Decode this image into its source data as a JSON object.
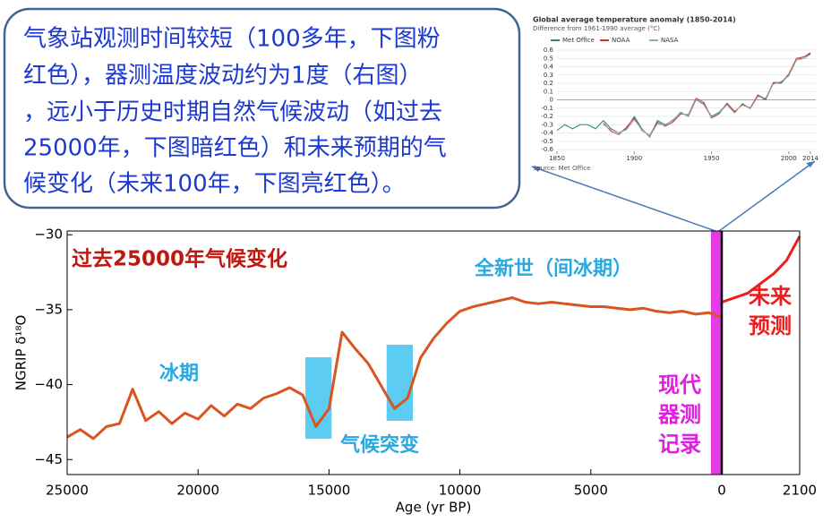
{
  "callout": {
    "lines": [
      "气象站观测时间较短（100多年，下图粉",
      "红色），器测温度波动约为1度（右图）",
      "，远小于历史时期自然气候波动（如过去",
      "25000年，下图暗红色）和未来预期的气",
      "候变化（未来100年，下图亮红色）。"
    ]
  },
  "chart_data": [
    {
      "type": "line",
      "x_label": "Age (yr BP)",
      "y_label": "NGRIP δ¹⁸O",
      "x": [
        25000,
        24500,
        24000,
        23500,
        23000,
        22500,
        22000,
        21500,
        21000,
        20500,
        20000,
        19500,
        19000,
        18500,
        18000,
        17500,
        17000,
        16500,
        16000,
        15500,
        15000,
        14500,
        14000,
        13500,
        13000,
        12500,
        12000,
        11500,
        11000,
        10500,
        10000,
        9500,
        9000,
        8500,
        8000,
        7500,
        7000,
        6500,
        6000,
        5500,
        5000,
        4500,
        4000,
        3500,
        3000,
        2500,
        2000,
        1500,
        1000,
        500,
        0
      ],
      "series": [
        {
          "color": "#d9541e",
          "values": [
            -43.5,
            -43,
            -43.6,
            -42.8,
            -42.6,
            -40.3,
            -42.4,
            -41.8,
            -42.6,
            -41.9,
            -42.3,
            -41.4,
            -42.1,
            -41.3,
            -41.6,
            -40.9,
            -40.6,
            -40.2,
            -40.7,
            -42.8,
            -41.6,
            -36.5,
            -37.6,
            -38.6,
            -40.1,
            -41.6,
            -40.9,
            -38.2,
            -36.9,
            -35.9,
            -35.1,
            -34.8,
            -34.6,
            -34.4,
            -34.2,
            -34.5,
            -34.6,
            -34.5,
            -34.6,
            -34.7,
            -34.8,
            -34.8,
            -34.9,
            -35,
            -34.9,
            -35.1,
            -35.2,
            -35.1,
            -35.3,
            -35.2,
            -35.5
          ]
        }
      ],
      "xlim": [
        25000,
        0
      ],
      "xticks": [
        25000,
        20000,
        15000,
        10000,
        5000,
        0
      ],
      "ylim": [
        -46,
        -29.75
      ],
      "yticks": [
        {
          "value": -30,
          "label": "−30"
        },
        {
          "value": -35,
          "label": "−35"
        },
        {
          "value": -40,
          "label": "−40"
        },
        {
          "value": -45,
          "label": "−45"
        }
      ],
      "highlights": [
        [
          15900,
          14900
        ],
        [
          12800,
          11800
        ]
      ],
      "highlight_color": "#3fc3f0",
      "annotations": [
        "过去25000年气候变化",
        "全新世（间冰期）",
        "冰期",
        "气候突变",
        "现代",
        "器测",
        "记录"
      ]
    },
    {
      "type": "line",
      "x": [
        1950,
        2000,
        2050,
        2075,
        2100
      ],
      "series": [
        {
          "color": "#ee1c1c",
          "values": [
            -34.5,
            -33.9,
            -32.6,
            -31.7,
            -30.1
          ]
        }
      ],
      "xlim": [
        1950,
        2100
      ],
      "xticks": [
        2100
      ],
      "ylim": [
        -46,
        -29.75
      ],
      "annotations": [
        "未来",
        "预测"
      ]
    },
    {
      "type": "line",
      "title": "Global average temperature anomaly (1850-2014)",
      "subtitle": "Difference from 1961-1990 average (°C)",
      "source": "Source: Met Office",
      "x": [
        1850,
        1855,
        1860,
        1865,
        1870,
        1875,
        1880,
        1885,
        1890,
        1895,
        1900,
        1905,
        1910,
        1915,
        1920,
        1925,
        1930,
        1935,
        1940,
        1945,
        1950,
        1955,
        1960,
        1965,
        1970,
        1975,
        1980,
        1985,
        1990,
        1995,
        2000,
        2005,
        2010,
        2014
      ],
      "series": [
        {
          "name": "Met Office",
          "color": "#1f8a82",
          "values": [
            -0.37,
            -0.3,
            -0.35,
            -0.3,
            -0.3,
            -0.35,
            -0.25,
            -0.35,
            -0.4,
            -0.35,
            -0.2,
            -0.35,
            -0.45,
            -0.25,
            -0.3,
            -0.25,
            -0.15,
            -0.2,
            0.0,
            -0.05,
            -0.2,
            -0.15,
            -0.05,
            -0.15,
            -0.05,
            -0.1,
            0.05,
            0.0,
            0.2,
            0.2,
            0.3,
            0.5,
            0.5,
            0.56
          ]
        },
        {
          "name": "NOAA",
          "color": "#d8322a",
          "values": [
            null,
            null,
            null,
            null,
            null,
            null,
            -0.28,
            -0.38,
            -0.42,
            -0.33,
            -0.22,
            -0.37,
            -0.43,
            -0.27,
            -0.32,
            -0.27,
            -0.17,
            -0.18,
            0.02,
            -0.03,
            -0.22,
            -0.17,
            -0.04,
            -0.14,
            -0.06,
            -0.1,
            0.06,
            0.01,
            0.21,
            0.21,
            0.31,
            0.5,
            0.52,
            0.57
          ]
        },
        {
          "name": "NASA",
          "color": "#8fb0a8",
          "values": [
            null,
            null,
            null,
            null,
            null,
            null,
            -0.3,
            -0.36,
            -0.4,
            -0.36,
            -0.24,
            -0.36,
            -0.44,
            -0.29,
            -0.31,
            -0.24,
            -0.16,
            -0.19,
            0.0,
            -0.06,
            -0.21,
            -0.16,
            -0.06,
            -0.16,
            -0.04,
            -0.11,
            0.04,
            0.02,
            0.19,
            0.22,
            0.29,
            0.48,
            0.5,
            0.55
          ]
        }
      ],
      "xlim": [
        1850,
        2014
      ],
      "xticks": [
        1850,
        1900,
        1950,
        2000,
        2014
      ],
      "ylim": [
        -0.6,
        0.6
      ],
      "yticks": [
        0.6,
        0.5,
        0.4,
        0.3,
        0.2,
        0.1,
        0,
        -0.1,
        -0.2,
        -0.3,
        -0.4,
        -0.5,
        -0.6
      ],
      "grid": true
    }
  ]
}
